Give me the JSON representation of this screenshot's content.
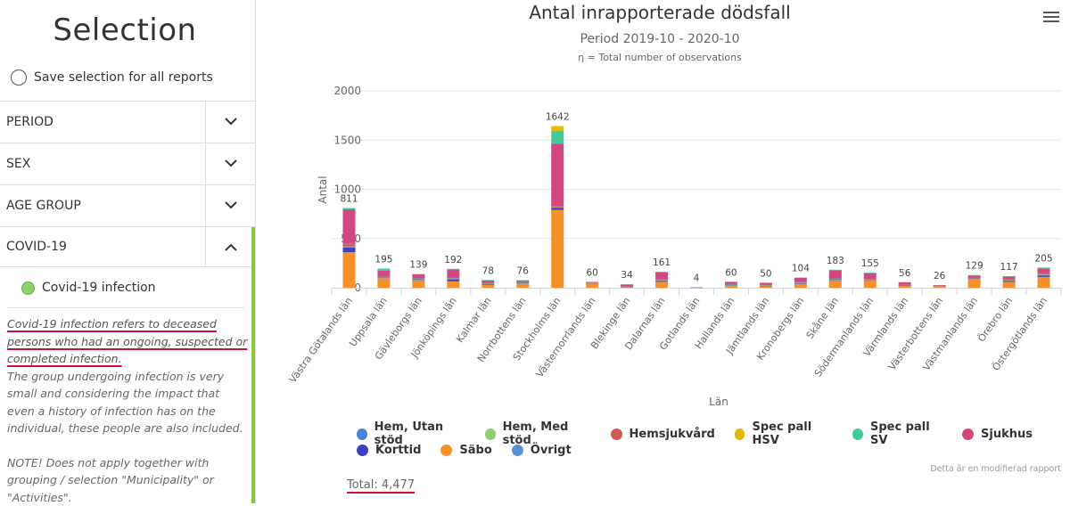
{
  "sidebar": {
    "title": "Selection",
    "save_selection_label": "Save selection for all reports",
    "save_selection_checked": false,
    "sections": [
      {
        "label": "PERIOD",
        "expanded": false
      },
      {
        "label": "SEX",
        "expanded": false
      },
      {
        "label": "AGE GROUP",
        "expanded": false
      },
      {
        "label": "COVID-19",
        "expanded": true
      }
    ],
    "covid_option": {
      "label": "Covid-19 infection",
      "selected": true
    },
    "description_highlight": "Covid-19 infection refers to deceased persons who had an ongoing, suspected or completed infection.",
    "description_body": "The group undergoing infection is very small and considering the impact that even a history of infection has on the individual, these people are also included.",
    "description_note": "NOTE! Does not apply together with grouping / selection \"Municipality\" or \"Activities\"."
  },
  "header": {
    "menu_icon": "hamburger-menu-icon"
  },
  "footer": {
    "modified_note": "Detta är en modifierad rapport",
    "total_label": "Total: 4,477"
  },
  "chart_data": {
    "type": "bar",
    "stacked": true,
    "title": "Antal inrapporterade dödsfall",
    "subtitle": "Period 2019-10 - 2020-10",
    "subtitle2": "η = Total number of observations",
    "xlabel": "Län",
    "ylabel": "Antal",
    "ylim": [
      0,
      2000
    ],
    "yticks": [
      0,
      500,
      1000,
      1500,
      2000
    ],
    "grid": true,
    "legend_position": "bottom",
    "categories": [
      "Västra Götalands län",
      "Uppsala län",
      "Gävleborgs län",
      "Jönköpings län",
      "Kalmar län",
      "Norrbottens län",
      "Stockholms län",
      "Västernorrlands län",
      "Blekinge län",
      "Dalarnas län",
      "Gotlands län",
      "Hallands län",
      "Jämtlands län",
      "Kronobergs län",
      "Skåne län",
      "Södermanlands län",
      "Värmlands län",
      "Västerbottens län",
      "Västmanlands län",
      "Örebro län",
      "Östergötlands län"
    ],
    "totals": [
      811,
      195,
      139,
      192,
      78,
      76,
      1642,
      60,
      34,
      161,
      4,
      60,
      50,
      104,
      183,
      155,
      56,
      26,
      129,
      117,
      205
    ],
    "series": [
      {
        "name": "Säbo",
        "color": "#f7902a",
        "values": [
          360,
          90,
          70,
          65,
          30,
          40,
          790,
          45,
          5,
          60,
          2,
          20,
          15,
          40,
          70,
          70,
          15,
          20,
          85,
          60,
          110
        ]
      },
      {
        "name": "Korttid",
        "color": "#3f3fc4",
        "values": [
          50,
          0,
          5,
          20,
          10,
          0,
          20,
          0,
          0,
          10,
          0,
          5,
          5,
          5,
          5,
          0,
          0,
          0,
          0,
          10,
          15
        ]
      },
      {
        "name": "Hem, Utan stöd",
        "color": "#4a86d8",
        "values": [
          5,
          5,
          3,
          5,
          2,
          2,
          5,
          2,
          2,
          3,
          0,
          2,
          3,
          3,
          3,
          3,
          2,
          1,
          3,
          5,
          5
        ]
      },
      {
        "name": "Hem, Med stöd",
        "color": "#8ed16a",
        "values": [
          3,
          2,
          2,
          2,
          1,
          1,
          3,
          1,
          1,
          2,
          0,
          1,
          1,
          2,
          3,
          2,
          1,
          1,
          2,
          2,
          3
        ]
      },
      {
        "name": "Hemsjukvård",
        "color": "#cf5b55",
        "values": [
          25,
          10,
          15,
          5,
          5,
          15,
          10,
          5,
          3,
          5,
          1,
          10,
          10,
          10,
          10,
          10,
          10,
          2,
          8,
          5,
          10
        ]
      },
      {
        "name": "Övrigt",
        "color": "#5b8fd4",
        "values": [
          3,
          3,
          3,
          3,
          2,
          2,
          4,
          2,
          1,
          3,
          1,
          2,
          2,
          2,
          3,
          2,
          2,
          1,
          2,
          3,
          3
        ]
      },
      {
        "name": "Sjukhus",
        "color": "#d2477f",
        "values": [
          350,
          65,
          38,
          87,
          27,
          15,
          630,
          5,
          22,
          75,
          0,
          20,
          14,
          40,
          85,
          60,
          26,
          1,
          25,
          30,
          50
        ]
      },
      {
        "name": "Spec pall SV",
        "color": "#45c99a",
        "values": [
          10,
          20,
          3,
          5,
          1,
          1,
          130,
          0,
          0,
          3,
          0,
          0,
          0,
          2,
          4,
          8,
          0,
          0,
          4,
          2,
          9
        ]
      },
      {
        "name": "Spec pall HSV",
        "color": "#e0b90d",
        "values": [
          5,
          0,
          0,
          0,
          0,
          0,
          50,
          0,
          0,
          0,
          0,
          0,
          0,
          0,
          0,
          0,
          0,
          0,
          0,
          0,
          0
        ]
      }
    ],
    "legend_rows": [
      [
        "Hem, Utan stöd",
        "Hem, Med stöd",
        "Hemsjukvård",
        "Spec pall HSV",
        "Spec pall SV",
        "Sjukhus"
      ],
      [
        "Korttid",
        "Säbo",
        "Övrigt"
      ]
    ]
  }
}
